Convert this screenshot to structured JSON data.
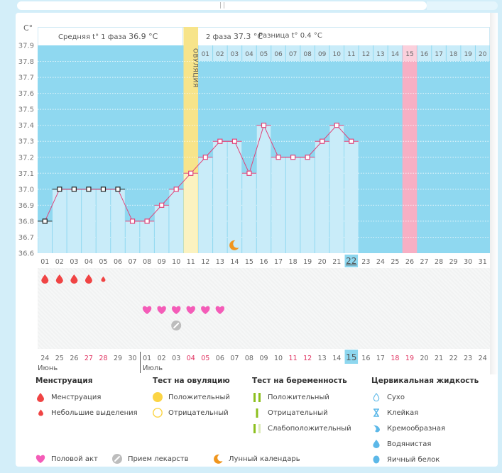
{
  "header": {
    "phase1_label": "Средняя t° 1 фаза",
    "phase1_value": "36.9 °C",
    "phase2_label": "2 фаза",
    "phase2_value": "37.3 °C",
    "diff_label": "Разница t°",
    "diff_value": "0.4 °C"
  },
  "ovulation_label": "ОВУЛЯЦИЯ",
  "months": {
    "left": "Июнь",
    "right": "Июль"
  },
  "chart_data": {
    "type": "line",
    "title": "",
    "ylabel": "C°",
    "ylim": [
      36.6,
      37.9
    ],
    "yticks": [
      "37.9",
      "37.8",
      "37.7",
      "37.6",
      "37.5",
      "37.4",
      "37.3",
      "37.2",
      "37.1",
      "37.0",
      "36.9",
      "36.8",
      "36.7",
      "36.6"
    ],
    "cycle_days": [
      "01",
      "02",
      "03",
      "04",
      "05",
      "06",
      "07",
      "08",
      "09",
      "10",
      "11",
      "12",
      "13",
      "14",
      "15",
      "16",
      "17",
      "18",
      "19",
      "20",
      "21",
      "22",
      "23",
      "24",
      "25",
      "26",
      "27",
      "28",
      "29",
      "30",
      "31"
    ],
    "luteal_days": [
      "01",
      "02",
      "03",
      "04",
      "05",
      "06",
      "07",
      "08",
      "09",
      "10",
      "11",
      "12",
      "13",
      "14",
      "15",
      "16",
      "17",
      "18",
      "19",
      "20"
    ],
    "luteal_start_index": 11,
    "luteal_highlight_index": 14,
    "calendar_dates": [
      "24",
      "25",
      "26",
      "27",
      "28",
      "29",
      "30",
      "01",
      "02",
      "03",
      "04",
      "05",
      "06",
      "07",
      "08",
      "09",
      "10",
      "11",
      "12",
      "13",
      "14",
      "15",
      "16",
      "17",
      "18",
      "19",
      "20",
      "21",
      "22",
      "23",
      "24"
    ],
    "weekend_indices": [
      3,
      4,
      10,
      11,
      17,
      18,
      24,
      25
    ],
    "today_index": 21,
    "ovulation_index": 10,
    "highlight_index": 25,
    "temperatures": [
      36.8,
      37.0,
      37.0,
      37.0,
      37.0,
      37.0,
      36.8,
      36.8,
      36.9,
      37.0,
      37.1,
      37.2,
      37.3,
      37.3,
      37.1,
      37.4,
      37.2,
      37.2,
      37.2,
      37.3,
      37.4,
      37.3
    ],
    "phase1_marker_count": 6,
    "moon_index": 13,
    "menstruation": [
      {
        "index": 0,
        "type": "heavy"
      },
      {
        "index": 1,
        "type": "heavy"
      },
      {
        "index": 2,
        "type": "heavy"
      },
      {
        "index": 3,
        "type": "heavy"
      },
      {
        "index": 4,
        "type": "light"
      }
    ],
    "intercourse_indices": [
      7,
      8,
      9,
      10,
      11,
      12
    ],
    "medication_indices": [
      9
    ]
  },
  "legend": {
    "menstruation": {
      "title": "Менструация",
      "items": [
        "Менструация",
        "Небольшие выделения"
      ]
    },
    "ovulation_test": {
      "title": "Тест на овуляцию",
      "items": [
        "Положительный",
        "Отрицательный"
      ]
    },
    "pregnancy_test": {
      "title": "Тест на беременность",
      "items": [
        "Положительный",
        "Отрицательный",
        "Слабоположительный"
      ]
    },
    "cervical": {
      "title": "Цервикальная жидкость",
      "items": [
        "Сухо",
        "Клейкая",
        "Кремообразная",
        "Водянистая",
        "Яичный белок"
      ]
    },
    "bottom": [
      "Половой акт",
      "Прием лекарств",
      "Лунный календарь"
    ]
  },
  "colors": {
    "plot_bg": "#8fd8f0",
    "bar_fill": "#c9ecf9",
    "line": "#e0447a",
    "ovulation": "#f7e48a",
    "ovulation_light": "#fbf2c0",
    "highlight_day": "#f7afc4",
    "menstruation": "#f04444",
    "heart": "#f45cb8",
    "weekend": "#e0305f",
    "sun": "#fbd444",
    "moon": "#f0961e",
    "pill": "#bdbdbd",
    "preg_green": "#8cbf1e",
    "cervical_blue": "#5cb8e8"
  }
}
